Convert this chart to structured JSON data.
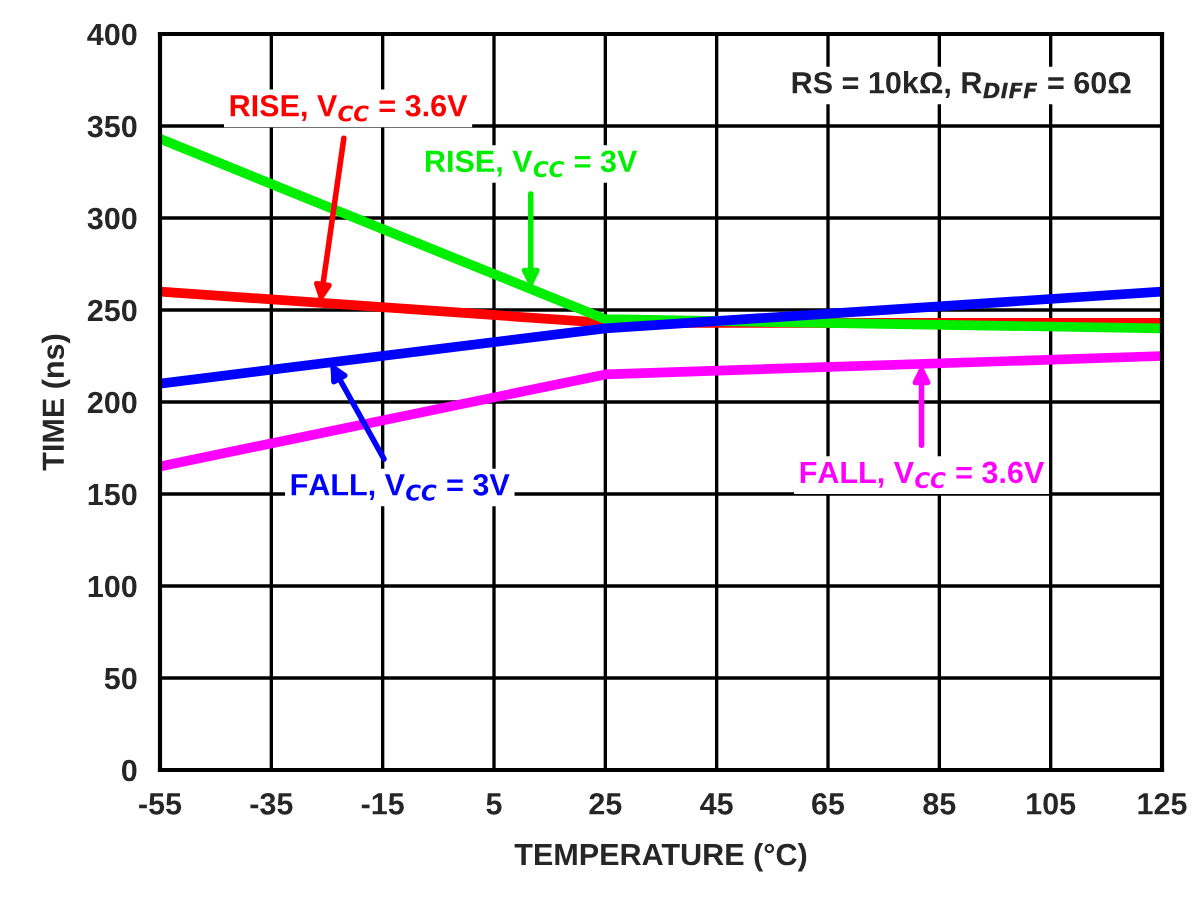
{
  "chart_data": {
    "type": "line",
    "xlabel": "TEMPERATURE (°C)",
    "ylabel": "TIME (ns)",
    "x": [
      -55,
      25,
      125
    ],
    "series": [
      {
        "name": "RISE, V$_{CC}$ = 3.6V",
        "color": "#ff0000",
        "values": [
          260,
          243,
          243
        ]
      },
      {
        "name": "RISE, V$_{CC}$ = 3V",
        "color": "#00ee00",
        "values": [
          343,
          245,
          240
        ]
      },
      {
        "name": "FALL, V$_{CC}$ = 3V",
        "color": "#0000ff",
        "values": [
          210,
          240,
          260
        ]
      },
      {
        "name": "FALL, V$_{CC}$ = 3.6V",
        "color": "#ff00ff",
        "values": [
          165,
          215,
          225
        ]
      }
    ],
    "annotations": [
      "RS = 10kΩ, R$_{DIFF}$ = 60Ω"
    ],
    "xlim": [
      -55,
      125
    ],
    "xticks": [
      -55,
      -35,
      -15,
      5,
      25,
      45,
      65,
      85,
      105,
      125
    ],
    "ylim": [
      0,
      400
    ],
    "yticks": [
      0,
      50,
      100,
      150,
      200,
      250,
      300,
      350,
      400
    ],
    "grid": true,
    "marker": "none",
    "line_style": "solid"
  }
}
